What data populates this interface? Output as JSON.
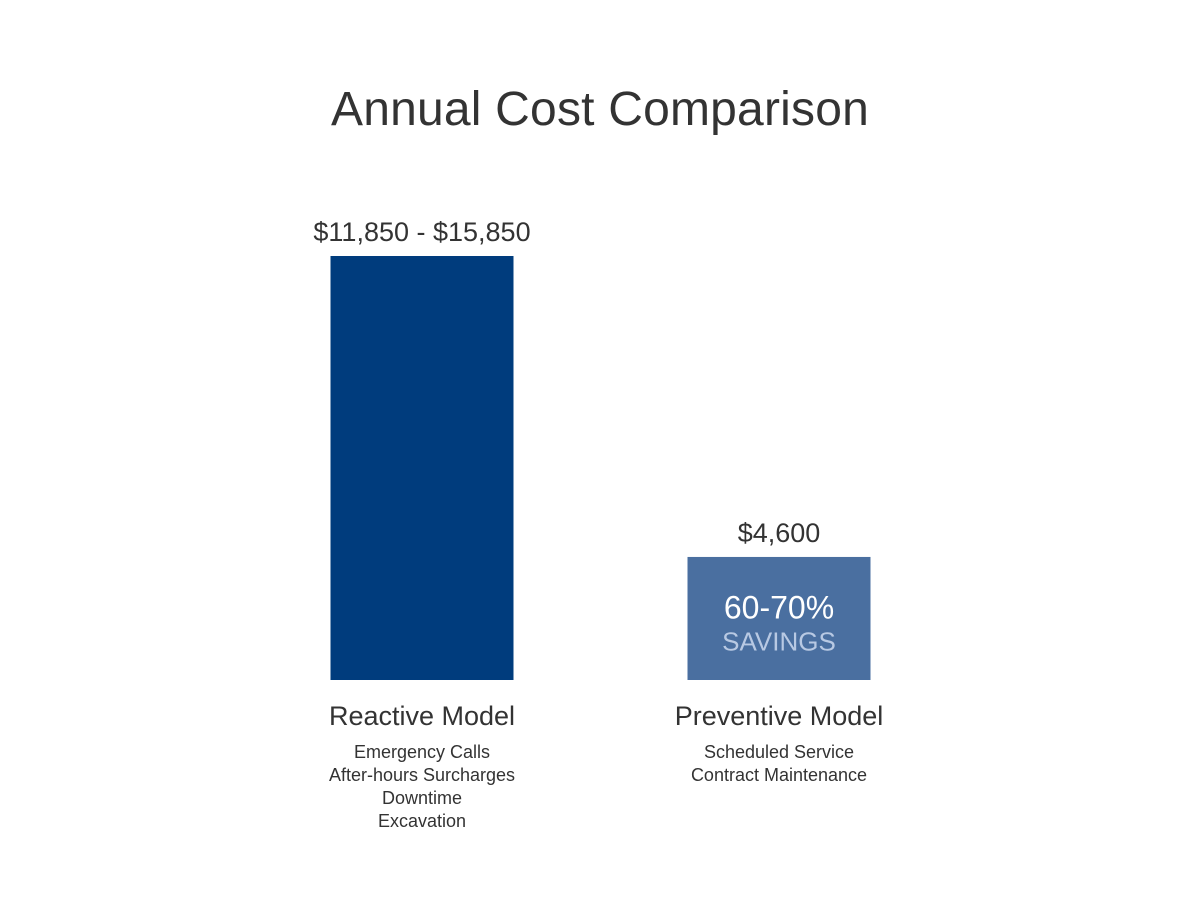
{
  "chart_data": {
    "type": "bar",
    "title": "Annual Cost Comparison",
    "categories": [
      "Reactive Model",
      "Preventive Model"
    ],
    "values": [
      15850,
      4600
    ],
    "value_labels": [
      "$11,850 - $15,850",
      "$4,600"
    ],
    "value_ranges": [
      [
        11850,
        15850
      ],
      [
        4600,
        4600
      ]
    ],
    "descriptions": [
      [
        "Emergency Calls",
        "After-hours Surcharges",
        "Downtime",
        "Excavation"
      ],
      [
        "Scheduled Service",
        "Contract Maintenance"
      ]
    ],
    "annotation": {
      "category": "Preventive Model",
      "value": "60-70%",
      "label": "SAVINGS"
    },
    "colors": [
      "#003c7d",
      "#4a6fa0"
    ],
    "xlabel": "",
    "ylabel": "",
    "ylim": [
      0,
      15850
    ],
    "grid": false,
    "legend": "none"
  }
}
